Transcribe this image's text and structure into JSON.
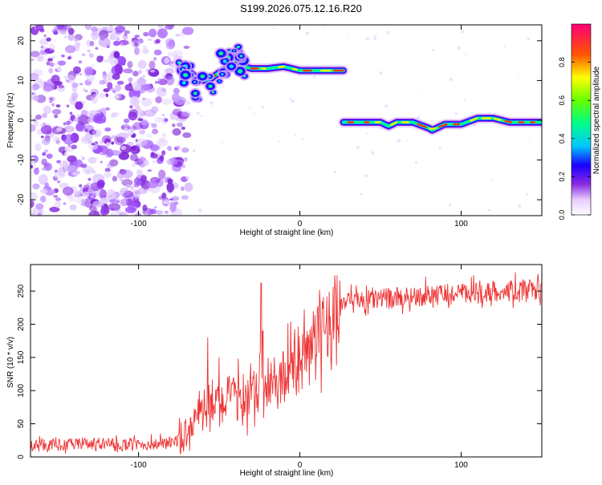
{
  "title": "S199.2026.075.12.16.R20",
  "chart_data": [
    {
      "type": "heatmap",
      "xlabel": "Height of straight line (km)",
      "ylabel": "Frequency (Hz)",
      "xlim": [
        -167,
        150
      ],
      "ylim": [
        -24,
        24
      ],
      "x_ticks": [
        -100,
        0,
        100
      ],
      "y_ticks": [
        -20,
        -10,
        0,
        10,
        20
      ],
      "noise_region_x": [
        -167,
        -75
      ],
      "track_x": [
        -75,
        -65,
        -60,
        -55,
        -50,
        -45,
        -40,
        -35,
        -30,
        -20,
        -10,
        0,
        10,
        20,
        27
      ],
      "track_y": [
        14.5,
        11,
        10,
        10.5,
        12,
        13,
        13.5,
        13.5,
        13,
        13,
        13.5,
        12.5,
        12.5,
        12.5,
        12.5
      ],
      "track2_x": [
        27,
        40,
        50,
        55,
        60,
        70,
        80,
        82,
        90,
        100,
        110,
        120,
        130,
        140,
        150
      ],
      "track2_y": [
        -0.5,
        -0.5,
        -0.5,
        -1.5,
        -0.5,
        -0.5,
        -2,
        -2.5,
        -1,
        -1,
        0.5,
        0.5,
        -0.5,
        -0.5,
        -0.5
      ],
      "colorbar": {
        "label": "Normalized spectral amplitude",
        "range": [
          0,
          1
        ],
        "ticks": [
          0.0,
          0.2,
          0.4,
          0.6,
          0.8
        ],
        "tick_labels": [
          "0.0",
          "0.2",
          "0.4",
          "0.6",
          "0.8"
        ]
      }
    },
    {
      "type": "line",
      "xlabel": "Height of straight line (km)",
      "ylabel": "SNR (10 * v/v)",
      "xlim": [
        -167,
        150
      ],
      "ylim": [
        0,
        290
      ],
      "x_ticks": [
        -100,
        0,
        100
      ],
      "y_ticks": [
        0,
        50,
        100,
        150,
        200,
        250
      ],
      "series": [
        {
          "name": "SNR",
          "color": "#ee3333",
          "x": [
            -167,
            -150,
            -130,
            -110,
            -90,
            -80,
            -75,
            -70,
            -65,
            -60,
            -55,
            -50,
            -45,
            -40,
            -35,
            -30,
            -25,
            -20,
            -15,
            -10,
            -5,
            0,
            5,
            10,
            15,
            20,
            25,
            30,
            40,
            50,
            60,
            70,
            80,
            90,
            100,
            110,
            115,
            120,
            130,
            140,
            150
          ],
          "y": [
            18,
            18,
            20,
            18,
            19,
            22,
            25,
            40,
            60,
            65,
            72,
            80,
            85,
            88,
            90,
            92,
            95,
            100,
            110,
            120,
            130,
            135,
            150,
            175,
            195,
            215,
            228,
            232,
            236,
            238,
            240,
            242,
            244,
            245,
            246,
            247,
            248,
            250,
            250,
            252,
            252
          ],
          "spikes": [
            [
              -57,
              180
            ],
            [
              -50,
              150
            ],
            [
              -24,
              262
            ],
            [
              -23,
              190
            ]
          ]
        }
      ]
    }
  ]
}
